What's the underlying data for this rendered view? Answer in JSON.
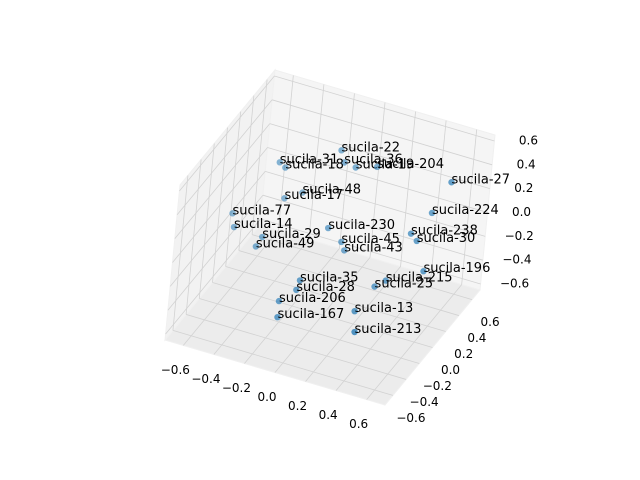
{
  "chart_data": {
    "type": "scatter3d",
    "color": "#1f77b4",
    "grid": true,
    "labels": [
      "sucila-22",
      "sucila-36",
      "sucila-31",
      "sucila-18",
      "sucila-19",
      "sucila-204",
      "sucila-27",
      "sucila-48",
      "sucila-17",
      "sucila-224",
      "sucila-77",
      "sucila-230",
      "sucila-14",
      "sucila-29",
      "sucila-238",
      "sucila-45",
      "sucila-30",
      "sucila-43",
      "sucila-49",
      "sucila-196",
      "sucila-215",
      "sucila-25",
      "sucila-35",
      "sucila-28",
      "sucila-206",
      "sucila-13",
      "sucila-167",
      "sucila-213"
    ],
    "x": [
      -0.14,
      -0.1,
      -0.44,
      -0.42,
      -0.05,
      0.06,
      0.55,
      -0.34,
      -0.41,
      0.43,
      -0.65,
      -0.11,
      -0.61,
      -0.45,
      0.35,
      -0.04,
      0.38,
      -0.02,
      -0.47,
      0.46,
      0.27,
      0.21,
      -0.15,
      -0.16,
      -0.23,
      0.18,
      -0.2,
      0.27
    ],
    "y": [
      0.43,
      0.39,
      0.2,
      0.25,
      0.46,
      0.53,
      0.51,
      0.37,
      0.26,
      0.55,
      0.04,
      0.25,
      -0.02,
      0.05,
      0.44,
      0.31,
      0.47,
      0.32,
      0.01,
      0.42,
      0.3,
      0.28,
      -0.04,
      -0.06,
      -0.15,
      0.06,
      -0.23,
      -0.15
    ],
    "z": [
      0.39,
      0.33,
      0.33,
      0.26,
      0.26,
      0.26,
      0.33,
      0.0,
      0.0,
      0.0,
      -0.07,
      -0.13,
      -0.13,
      -0.2,
      -0.13,
      -0.26,
      -0.2,
      -0.33,
      -0.26,
      -0.39,
      -0.46,
      -0.52,
      -0.39,
      -0.46,
      -0.52,
      -0.59,
      -0.59,
      -0.59
    ],
    "xlim": [
      -0.72,
      0.72
    ],
    "ylim": [
      -0.72,
      0.72
    ],
    "zlim": [
      -0.65,
      0.65
    ],
    "xticks": [
      {
        "value": -0.6,
        "label": "−0.6"
      },
      {
        "value": -0.4,
        "label": "−0.4"
      },
      {
        "value": -0.2,
        "label": "−0.2"
      },
      {
        "value": 0,
        "label": "0.0"
      },
      0.2,
      0.4,
      0.6
    ],
    "yticks": [
      {
        "value": -0.6,
        "label": "−0.6"
      },
      {
        "value": -0.4,
        "label": "−0.4"
      },
      {
        "value": -0.2,
        "label": "−0.2"
      },
      {
        "value": 0,
        "label": "0.0"
      },
      0.2,
      0.4,
      0.6
    ],
    "zticks": [
      {
        "value": -0.6,
        "label": "−0.6"
      },
      {
        "value": -0.4,
        "label": "−0.4"
      },
      {
        "value": -0.2,
        "label": "−0.2"
      },
      {
        "value": 0,
        "label": "0.0"
      },
      0.2,
      0.4,
      0.6
    ]
  }
}
